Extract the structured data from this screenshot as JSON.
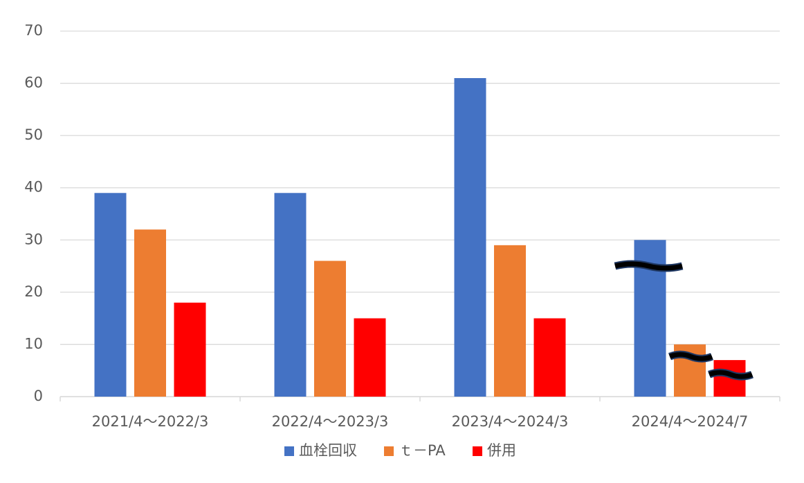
{
  "chart_data": {
    "type": "bar",
    "categories": [
      "2021/4～2022/3",
      "2022/4～2023/3",
      "2023/4～2024/3",
      "2024/4～2024/7"
    ],
    "series": [
      {
        "name": "血栓回収",
        "color": "#4472c4",
        "values": [
          39,
          39,
          61,
          30
        ]
      },
      {
        "name": "ｔ－PA",
        "color": "#ed7d31",
        "values": [
          32,
          26,
          29,
          10
        ]
      },
      {
        "name": "併用",
        "color": "#ff0000",
        "values": [
          18,
          15,
          15,
          7
        ]
      }
    ],
    "ylim": [
      0,
      70
    ],
    "yticks": [
      0,
      10,
      20,
      30,
      40,
      50,
      60,
      70
    ],
    "grid": true,
    "legend": "bottom"
  }
}
